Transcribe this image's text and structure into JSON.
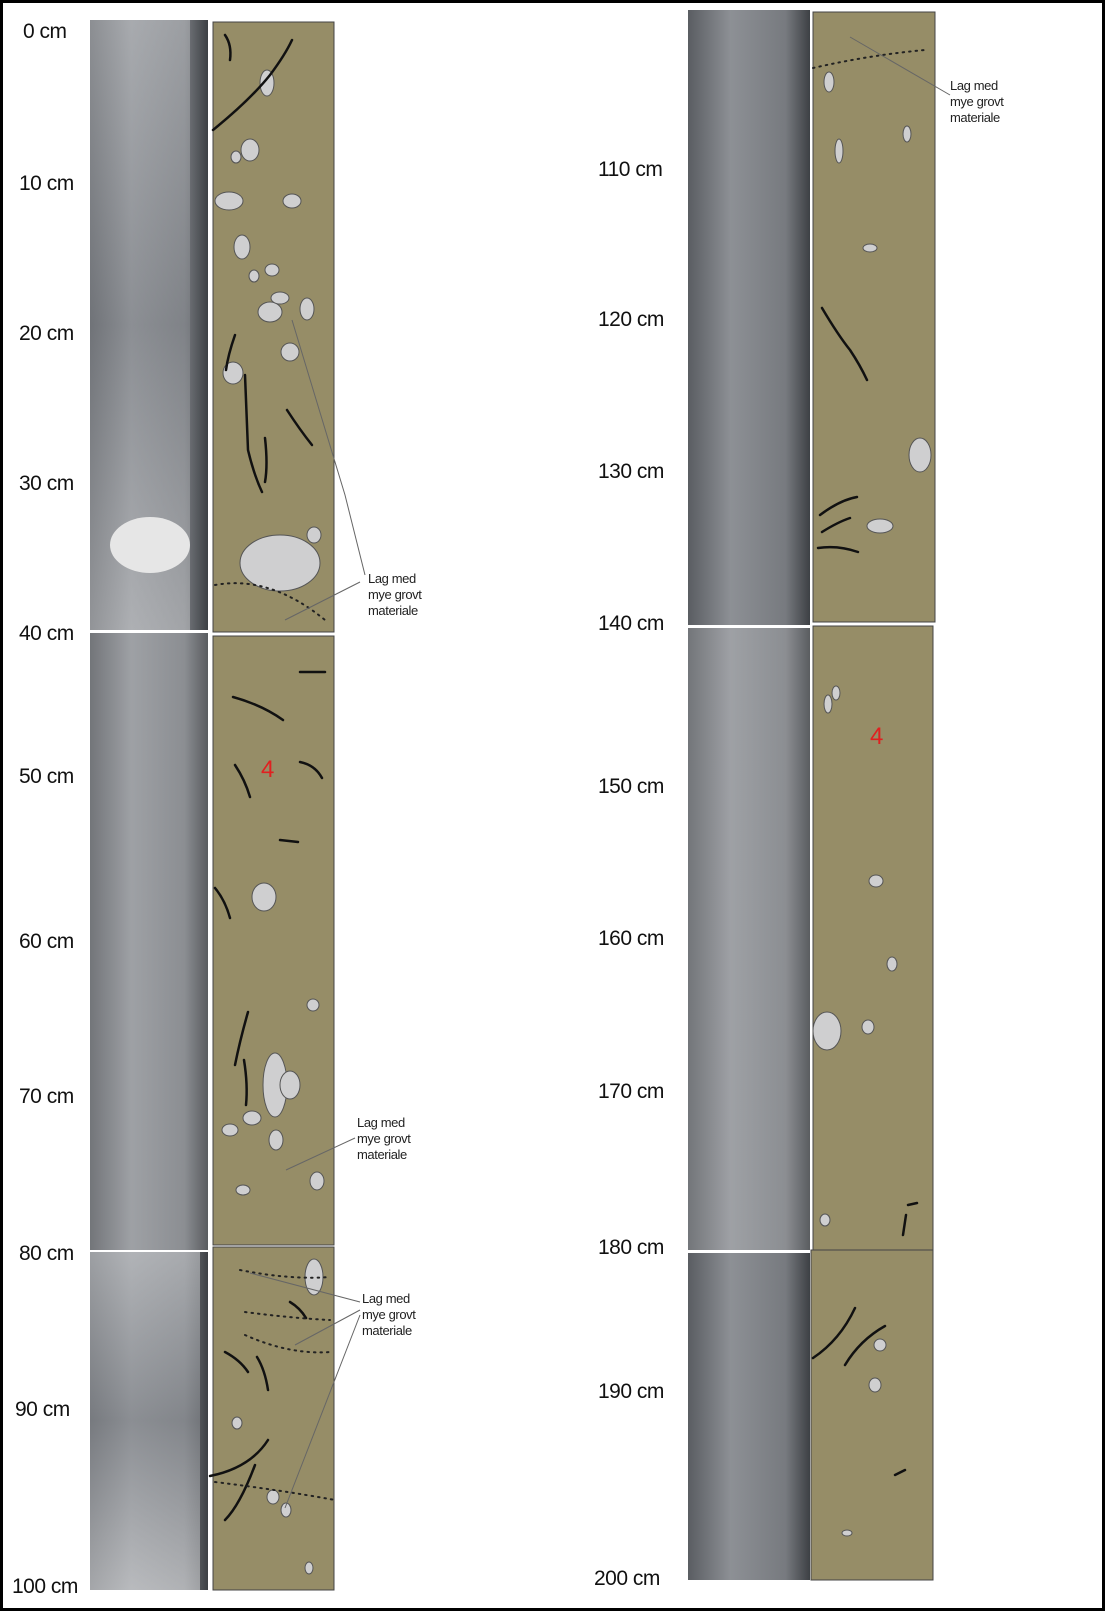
{
  "depth_labels": [
    "0 cm",
    "10 cm",
    "20 cm",
    "30 cm",
    "40 cm",
    "50 cm",
    "60 cm",
    "70 cm",
    "80 cm",
    "90 cm",
    "100 cm",
    "110 cm",
    "120 cm",
    "130 cm",
    "140 cm",
    "150 cm",
    "160 cm",
    "170 cm",
    "180 cm",
    "190 cm",
    "200 cm"
  ],
  "annotations": [
    {
      "lines": [
        "Lag med",
        "mye grovt",
        "materiale"
      ]
    },
    {
      "lines": [
        "Lag med",
        "mye grovt",
        "materiale"
      ]
    },
    {
      "lines": [
        "Lag med",
        "mye grovt",
        "materiale"
      ]
    },
    {
      "lines": [
        "Lag med",
        "mye grovt",
        "materiale"
      ]
    }
  ],
  "unit_labels": [
    "4",
    "4"
  ]
}
